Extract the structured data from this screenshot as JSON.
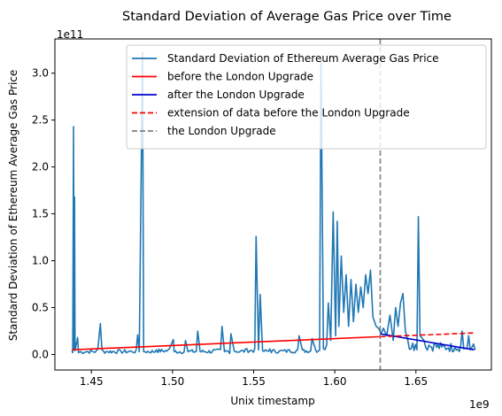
{
  "chart_data": {
    "type": "line",
    "title": "Standard Deviation of Average Gas Price over Time",
    "xlabel": "Unix timestamp",
    "ylabel": "Standard Deviation of Ethereum Average Gas Price",
    "x_offset_label": "1e9",
    "y_offset_label": "1e11",
    "xlim": [
      1.4275,
      1.6965
    ],
    "ylim": [
      -0.165,
      3.365
    ],
    "x_ticks": [
      "1.45",
      "1.50",
      "1.55",
      "1.60",
      "1.65"
    ],
    "x_tick_values": [
      1.45,
      1.5,
      1.55,
      1.6,
      1.65
    ],
    "y_ticks": [
      "0.0",
      "0.5",
      "1.0",
      "1.5",
      "2.0",
      "2.5",
      "3.0"
    ],
    "y_tick_values": [
      0.0,
      0.5,
      1.0,
      1.5,
      2.0,
      2.5,
      3.0
    ],
    "legend_position": "top-right",
    "grid": false,
    "series": [
      {
        "name": "Standard Deviation of Ethereum Average Gas Price",
        "color": "#1f77b4",
        "style": "solid",
        "baseline_noise": 0.03,
        "points": [
          [
            1.438,
            0.04
          ],
          [
            1.4385,
            0.02
          ],
          [
            1.439,
            2.43
          ],
          [
            1.4393,
            0.05
          ],
          [
            1.4396,
            1.68
          ],
          [
            1.4399,
            0.04
          ],
          [
            1.4415,
            0.18
          ],
          [
            1.442,
            0.02
          ],
          [
            1.447,
            0.03
          ],
          [
            1.454,
            0.06
          ],
          [
            1.4555,
            0.33
          ],
          [
            1.4565,
            0.05
          ],
          [
            1.46,
            0.03
          ],
          [
            1.468,
            0.04
          ],
          [
            1.475,
            0.03
          ],
          [
            1.4785,
            0.21
          ],
          [
            1.4795,
            0.03
          ],
          [
            1.4815,
            3.22
          ],
          [
            1.4822,
            0.03
          ],
          [
            1.49,
            0.05
          ],
          [
            1.498,
            0.06
          ],
          [
            1.5005,
            0.16
          ],
          [
            1.501,
            0.03
          ],
          [
            1.508,
            0.15
          ],
          [
            1.5095,
            0.03
          ],
          [
            1.5155,
            0.25
          ],
          [
            1.517,
            0.03
          ],
          [
            1.525,
            0.05
          ],
          [
            1.5305,
            0.3
          ],
          [
            1.532,
            0.03
          ],
          [
            1.536,
            0.22
          ],
          [
            1.538,
            0.04
          ],
          [
            1.545,
            0.06
          ],
          [
            1.5515,
            1.26
          ],
          [
            1.553,
            0.05
          ],
          [
            1.554,
            0.64
          ],
          [
            1.5555,
            0.04
          ],
          [
            1.56,
            0.06
          ],
          [
            1.566,
            0.04
          ],
          [
            1.572,
            0.05
          ],
          [
            1.578,
            0.2
          ],
          [
            1.58,
            0.05
          ],
          [
            1.586,
            0.17
          ],
          [
            1.588,
            0.06
          ],
          [
            1.5915,
            3.15
          ],
          [
            1.593,
            0.06
          ],
          [
            1.596,
            0.55
          ],
          [
            1.5975,
            0.15
          ],
          [
            1.599,
            1.52
          ],
          [
            1.6005,
            0.2
          ],
          [
            1.6015,
            1.42
          ],
          [
            1.6025,
            0.3
          ],
          [
            1.604,
            1.05
          ],
          [
            1.6055,
            0.45
          ],
          [
            1.607,
            0.85
          ],
          [
            1.6085,
            0.3
          ],
          [
            1.61,
            0.8
          ],
          [
            1.6115,
            0.35
          ],
          [
            1.613,
            0.75
          ],
          [
            1.6145,
            0.45
          ],
          [
            1.616,
            0.72
          ],
          [
            1.6175,
            0.5
          ],
          [
            1.619,
            0.85
          ],
          [
            1.6205,
            0.65
          ],
          [
            1.622,
            0.9
          ],
          [
            1.6235,
            0.4
          ],
          [
            1.6255,
            0.3
          ],
          [
            1.627,
            0.28
          ],
          [
            1.6285,
            0.22
          ],
          [
            1.63,
            0.28
          ],
          [
            1.632,
            0.2
          ],
          [
            1.634,
            0.42
          ],
          [
            1.636,
            0.15
          ],
          [
            1.6375,
            0.5
          ],
          [
            1.639,
            0.3
          ],
          [
            1.6405,
            0.55
          ],
          [
            1.642,
            0.65
          ],
          [
            1.6435,
            0.25
          ],
          [
            1.645,
            0.15
          ],
          [
            1.648,
            0.12
          ],
          [
            1.6515,
            1.47
          ],
          [
            1.6525,
            0.2
          ],
          [
            1.655,
            0.15
          ],
          [
            1.658,
            0.1
          ],
          [
            1.662,
            0.12
          ],
          [
            1.666,
            0.08
          ],
          [
            1.67,
            0.07
          ],
          [
            1.674,
            0.08
          ],
          [
            1.6785,
            0.25
          ],
          [
            1.6795,
            0.06
          ],
          [
            1.6825,
            0.2
          ],
          [
            1.6835,
            0.05
          ],
          [
            1.6865,
            0.05
          ]
        ]
      },
      {
        "name": "before the London Upgrade",
        "color": "#ff0000",
        "style": "solid",
        "points": [
          [
            1.438,
            0.05
          ],
          [
            1.628,
            0.19
          ]
        ]
      },
      {
        "name": "after the London Upgrade",
        "color": "#0000cc",
        "style": "solid",
        "points": [
          [
            1.628,
            0.22
          ],
          [
            1.686,
            0.05
          ]
        ]
      },
      {
        "name": "extension of data before the London Upgrade",
        "color": "#ff0000",
        "style": "dashed",
        "points": [
          [
            1.628,
            0.19
          ],
          [
            1.686,
            0.23
          ]
        ]
      },
      {
        "name": "the London Upgrade",
        "color": "#808080",
        "style": "dashed",
        "vline_x": 1.628
      }
    ]
  }
}
